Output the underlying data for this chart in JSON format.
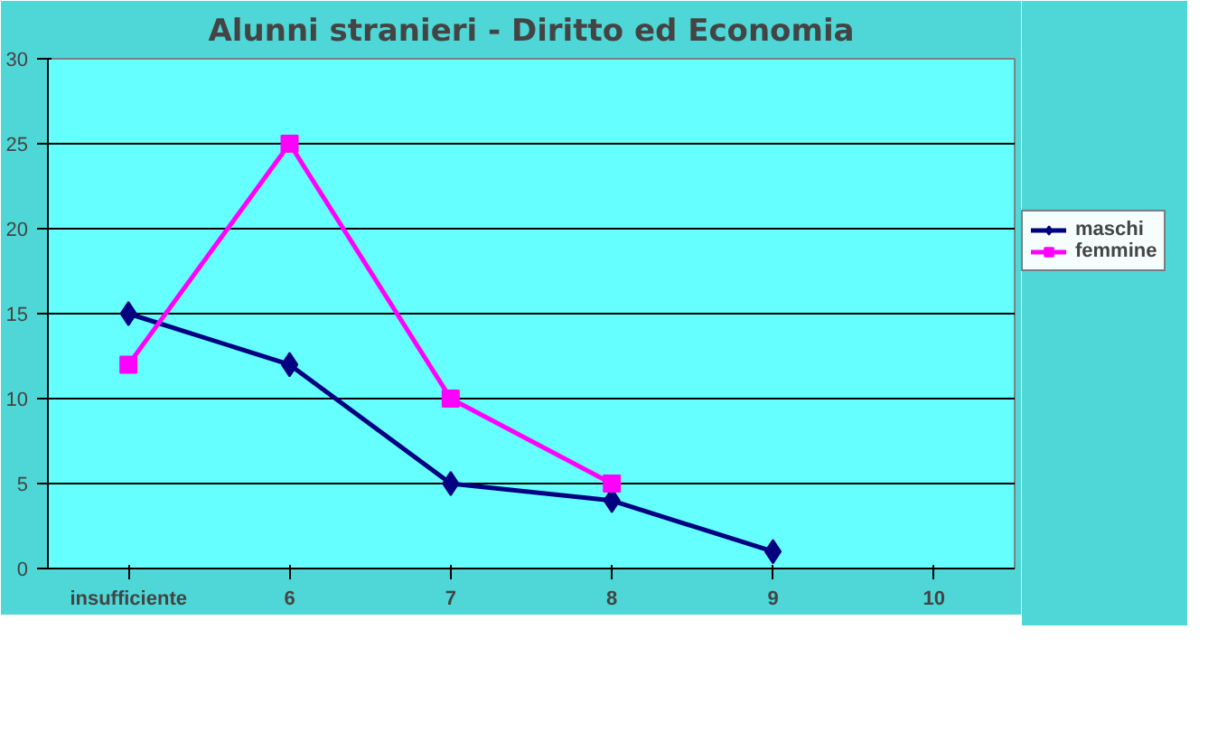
{
  "chart_data": {
    "type": "line",
    "title": "Alunni stranieri - Diritto ed Economia",
    "categories": [
      "insufficiente",
      "6",
      "7",
      "8",
      "9",
      "10"
    ],
    "series": [
      {
        "name": "maschi",
        "color": "#000080",
        "marker": "diamond",
        "values": [
          15,
          12,
          5,
          4,
          1,
          null
        ]
      },
      {
        "name": "femmine",
        "color": "#ff00ff",
        "marker": "square",
        "values": [
          12,
          25,
          10,
          5,
          null,
          null
        ]
      }
    ],
    "ylim": [
      0,
      30
    ],
    "yticks": [
      0,
      5,
      10,
      15,
      20,
      25,
      30
    ],
    "grid": "y",
    "legend": "right"
  }
}
